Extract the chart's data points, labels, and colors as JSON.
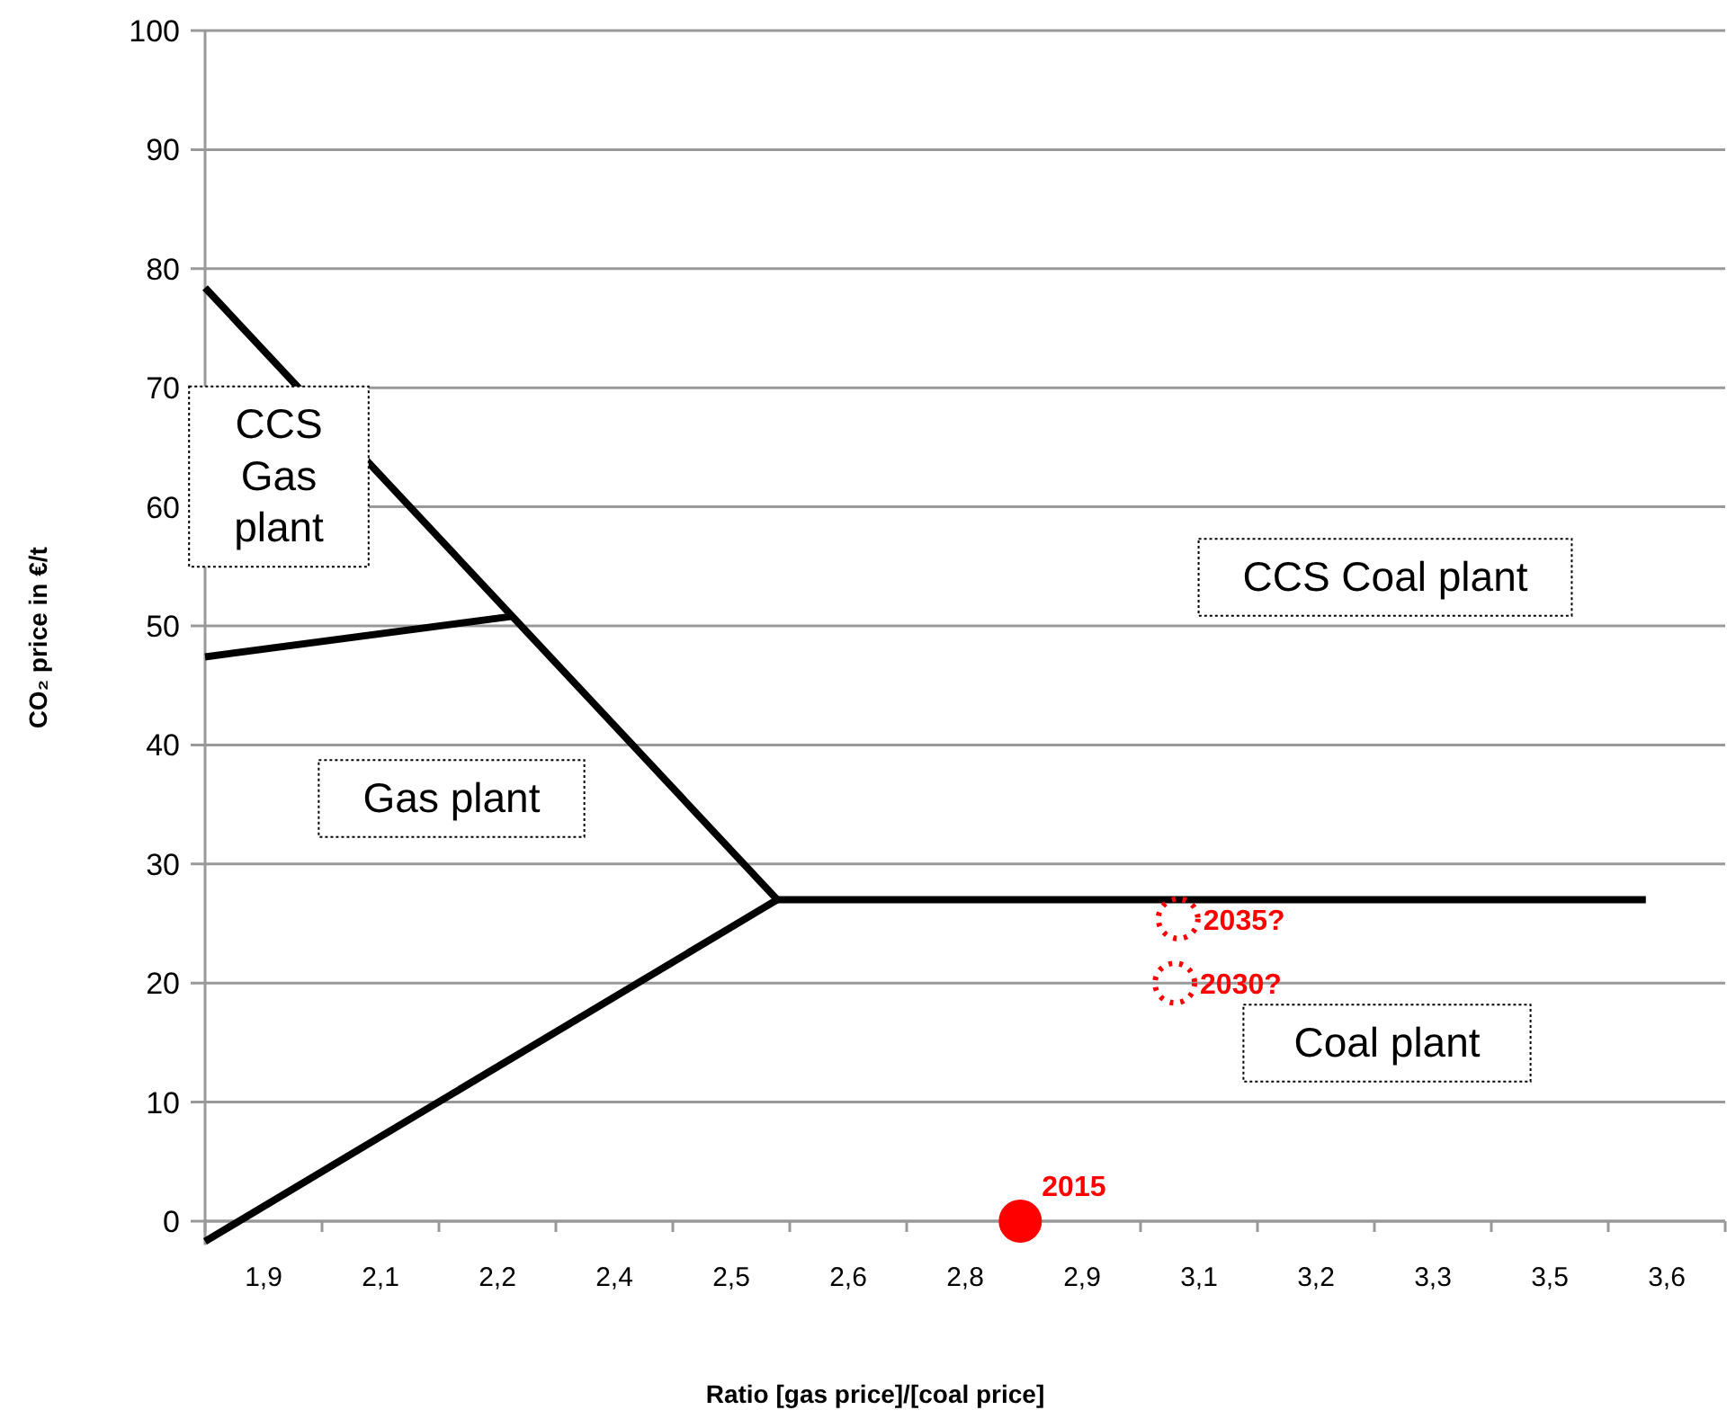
{
  "chart_data": {
    "type": "line",
    "xlabel": "Ratio [gas price]/[coal price]",
    "ylabel": "CO₂ price in €/t",
    "xlim": [
      1.86,
      3.68
    ],
    "xticks": [
      {
        "value": 1.86,
        "label": null
      },
      {
        "value": 1.93,
        "label": "1,9"
      },
      {
        "value": 2.0,
        "label": null
      },
      {
        "value": 2.07,
        "label": "2,1"
      },
      {
        "value": 2.14,
        "label": null
      },
      {
        "value": 2.21,
        "label": "2,2"
      },
      {
        "value": 2.28,
        "label": null
      },
      {
        "value": 2.35,
        "label": "2,4"
      },
      {
        "value": 2.42,
        "label": null
      },
      {
        "value": 2.49,
        "label": "2,5"
      },
      {
        "value": 2.56,
        "label": null
      },
      {
        "value": 2.63,
        "label": "2,6"
      },
      {
        "value": 2.7,
        "label": null
      },
      {
        "value": 2.77,
        "label": "2,8"
      },
      {
        "value": 2.84,
        "label": null
      },
      {
        "value": 2.91,
        "label": "2,9"
      },
      {
        "value": 2.98,
        "label": null
      },
      {
        "value": 3.05,
        "label": "3,1"
      },
      {
        "value": 3.12,
        "label": null
      },
      {
        "value": 3.19,
        "label": "3,2"
      },
      {
        "value": 3.26,
        "label": null
      },
      {
        "value": 3.33,
        "label": "3,3"
      },
      {
        "value": 3.4,
        "label": null
      },
      {
        "value": 3.47,
        "label": "3,5"
      },
      {
        "value": 3.54,
        "label": null
      },
      {
        "value": 3.61,
        "label": "3,6"
      },
      {
        "value": 3.68,
        "label": null
      }
    ],
    "ylim": [
      -2,
      100
    ],
    "yticks": [
      0,
      10,
      20,
      30,
      40,
      50,
      60,
      70,
      80,
      90,
      100
    ],
    "grid": "y",
    "line_style": "solid",
    "series": [
      {
        "color": "#000000",
        "marker": "none",
        "x": [
          1.86,
          2.545
        ],
        "values": [
          78.4,
          27
        ]
      },
      {
        "color": "#000000",
        "marker": "none",
        "x": [
          1.86,
          2.228
        ],
        "values": [
          47.4,
          50.8
        ]
      },
      {
        "color": "#000000",
        "marker": "none",
        "x": [
          1.86,
          2.545
        ],
        "values": [
          -1.7,
          27
        ]
      },
      {
        "color": "#000000",
        "marker": "none",
        "x": [
          2.545,
          3.585
        ],
        "values": [
          27,
          27
        ]
      },
      {
        "type": "scatter",
        "name": "2015",
        "color": "#ff0000",
        "marker": "circle",
        "x": [
          2.836
        ],
        "values": [
          0
        ]
      },
      {
        "type": "scatter",
        "name": "2030?",
        "color": "#ff0000",
        "marker": "circle",
        "line_style": "dotted",
        "x": [
          3.021
        ],
        "values": [
          20
        ]
      },
      {
        "type": "scatter",
        "name": "2035?",
        "color": "#ff0000",
        "marker": "circle",
        "line_style": "dotted",
        "x": [
          3.025
        ],
        "values": [
          25.4
        ]
      }
    ],
    "annotations": [
      "CCS Gas plant",
      "Gas plant",
      "CCS Coal plant",
      "Coal plant"
    ]
  }
}
